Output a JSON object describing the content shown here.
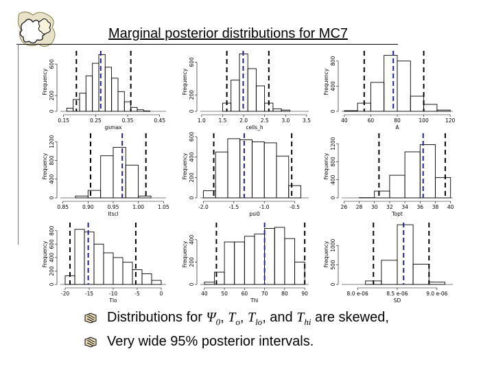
{
  "title": "Marginal posterior distributions for MC7",
  "bullets": {
    "b1": {
      "prefix": "Distributions for ",
      "psi": "Ψ",
      "psi_sub": "0",
      "sep1": ", ",
      "to": "T",
      "to_sub": "o",
      "sep2": ", ",
      "tlo": "T",
      "tlo_sub": "lo",
      "sep3": ", and ",
      "thi": "T",
      "thi_sub": "hi",
      "suffix": " are skewed,"
    },
    "b2": {
      "text": "Very wide 95% posterior intervals."
    }
  },
  "chart_data": [
    {
      "type": "bar",
      "xlabel": "gsmax",
      "ylabel": "Frequency",
      "xlim": [
        0.14,
        0.47
      ],
      "ylim": [
        0,
        750
      ],
      "xticks": [
        0.15,
        0.25,
        0.35,
        0.45
      ],
      "xtick_labels": [
        "0.15",
        "0.25",
        "0.35",
        "0.45"
      ],
      "yticks": [
        0,
        200,
        600
      ],
      "ytick_labels": [
        "0",
        "200",
        "600"
      ],
      "bins": [
        0.16,
        0.18,
        0.2,
        0.22,
        0.24,
        0.26,
        0.28,
        0.3,
        0.32,
        0.34,
        0.36,
        0.38,
        0.4,
        0.42
      ],
      "counts": [
        40,
        150,
        230,
        450,
        610,
        720,
        560,
        420,
        250,
        120,
        50,
        20,
        5
      ],
      "ci95": [
        0.19,
        0.36
      ],
      "mean": 0.266
    },
    {
      "type": "bar",
      "xlabel": "cells_h",
      "ylabel": "Frequency",
      "xlim": [
        0.97,
        3.55
      ],
      "ylim": [
        0,
        720
      ],
      "xticks": [
        1.0,
        1.5,
        2.0,
        2.5,
        3.0,
        3.5
      ],
      "xtick_labels": [
        "1.0",
        "1.5",
        "2.0",
        "2.5",
        "3.0",
        "3.5"
      ],
      "yticks": [
        0,
        200,
        600
      ],
      "ytick_labels": [
        "0",
        "200",
        "600"
      ],
      "bins": [
        1.5,
        1.7,
        1.9,
        2.1,
        2.3,
        2.5,
        2.7,
        2.9,
        3.1
      ],
      "counts": [
        100,
        380,
        700,
        520,
        310,
        100,
        30,
        15
      ],
      "ci95": [
        1.6,
        2.6
      ],
      "mean": 1.99
    },
    {
      "type": "bar",
      "xlabel": "A",
      "ylabel": "Frequency",
      "xlim": [
        38,
        122
      ],
      "ylim": [
        0,
        940
      ],
      "xticks": [
        40,
        60,
        80,
        100,
        120
      ],
      "xtick_labels": [
        "40",
        "60",
        "80",
        "100",
        "120"
      ],
      "yticks": [
        0,
        400,
        800
      ],
      "ytick_labels": [
        "0",
        "400",
        "800"
      ],
      "bins": [
        40,
        50,
        60,
        70,
        80,
        90,
        100,
        110,
        120
      ],
      "counts": [
        10,
        130,
        460,
        890,
        800,
        240,
        110,
        20
      ],
      "ci95": [
        55,
        100
      ],
      "mean": 77
    },
    {
      "type": "bar",
      "xlabel": "ltscl",
      "ylabel": "Frequency",
      "xlim": [
        0.845,
        1.055
      ],
      "ylim": [
        0,
        1350
      ],
      "xticks": [
        0.85,
        0.9,
        0.95,
        1.0,
        1.05
      ],
      "xtick_labels": [
        "0.85",
        "0.90",
        "0.95",
        "1.00",
        "1.05"
      ],
      "yticks": [
        0,
        400,
        800,
        1200
      ],
      "ytick_labels": [
        "0",
        "400",
        "800",
        "1200"
      ],
      "bins": [
        0.875,
        0.9,
        0.925,
        0.95,
        0.975,
        1.0,
        1.025
      ],
      "counts": [
        40,
        160,
        900,
        1080,
        700,
        40
      ],
      "ci95": [
        0.905,
        1.015
      ],
      "mean": 0.968
    },
    {
      "type": "bar",
      "xlabel": "psi0",
      "ylabel": "Frequency",
      "xlim": [
        -2.05,
        -0.27
      ],
      "ylim": [
        0,
        620
      ],
      "xticks": [
        -2.0,
        -1.5,
        -1.0,
        -0.5
      ],
      "xtick_labels": [
        "-2.0",
        "-1.5",
        "-1.0",
        "-0.5"
      ],
      "yticks": [
        0,
        200,
        400,
        600
      ],
      "ytick_labels": [
        "0",
        "200",
        "400",
        "600"
      ],
      "bins": [
        -2.0,
        -1.8,
        -1.6,
        -1.4,
        -1.2,
        -1.0,
        -0.8,
        -0.6,
        -0.4
      ],
      "counts": [
        70,
        450,
        580,
        570,
        550,
        540,
        410,
        120
      ],
      "ci95": [
        -1.83,
        -0.55
      ],
      "mean": -1.33
    },
    {
      "type": "bar",
      "xlabel": "Topt",
      "ylabel": "Frequency",
      "xlim": [
        25.7,
        40.3
      ],
      "ylim": [
        0,
        1400
      ],
      "xticks": [
        26,
        28,
        30,
        32,
        34,
        36,
        38,
        40
      ],
      "xtick_labels": [
        "26",
        "28",
        "30",
        "32",
        "34",
        "36",
        "38",
        "40"
      ],
      "yticks": [
        0,
        400,
        800,
        1200
      ],
      "ytick_labels": [
        "0",
        "400",
        "800",
        "1200"
      ],
      "bins": [
        28,
        30,
        32,
        34,
        36,
        38,
        40
      ],
      "counts": [
        5,
        150,
        500,
        1020,
        1180,
        450
      ],
      "ci95": [
        30.6,
        39.3
      ],
      "mean": 36.4
    },
    {
      "type": "bar",
      "xlabel": "Tlo",
      "ylabel": "Frequency",
      "xlim": [
        -21,
        1
      ],
      "ylim": [
        0,
        900
      ],
      "xticks": [
        -20,
        -15,
        -10,
        -5,
        0
      ],
      "xtick_labels": [
        "-20",
        "-15",
        "-10",
        "-5",
        "0"
      ],
      "yticks": [
        0,
        200,
        400,
        600,
        800
      ],
      "ytick_labels": [
        "0",
        "200",
        "400",
        "600",
        "800"
      ],
      "bins": [
        -20,
        -18,
        -16,
        -14,
        -12,
        -10,
        -8,
        -6,
        -4,
        -2,
        0
      ],
      "counts": [
        130,
        820,
        780,
        600,
        470,
        400,
        330,
        220,
        160,
        60
      ],
      "ci95": [
        -19,
        -5.3
      ],
      "mean": -15.2
    },
    {
      "type": "bar",
      "xlabel": "Thi",
      "ylabel": "Frequency",
      "xlim": [
        38,
        92
      ],
      "ylim": [
        0,
        540
      ],
      "xticks": [
        40,
        50,
        60,
        70,
        80,
        90
      ],
      "xtick_labels": [
        "40",
        "50",
        "60",
        "70",
        "80",
        "90"
      ],
      "yticks": [
        0,
        200,
        400
      ],
      "ytick_labels": [
        "0",
        "200",
        "400"
      ],
      "bins": [
        40,
        45,
        50,
        55,
        60,
        65,
        70,
        75,
        80,
        85,
        90
      ],
      "counts": [
        20,
        110,
        380,
        380,
        430,
        450,
        500,
        510,
        410,
        200
      ],
      "ci95": [
        46,
        90
      ],
      "mean": 70
    },
    {
      "type": "bar",
      "xlabel": "SD",
      "ylabel": "Frequency",
      "xlim": [
        7.8e-06,
        9.2e-06
      ],
      "ylim": [
        0,
        1550
      ],
      "xticks": [
        8e-06,
        8.5e-06,
        9e-06
      ],
      "xtick_labels": [
        "8.0 e-06",
        "8.5 e-06",
        "9.0 e-06"
      ],
      "yticks": [
        0,
        500,
        1000
      ],
      "ytick_labels": [
        "0",
        "500",
        "1000"
      ],
      "bins": [
        8.1e-06,
        8.3e-06,
        8.5e-06,
        8.7e-06,
        8.9e-06,
        9.1e-06
      ],
      "counts": [
        90,
        620,
        1530,
        520,
        60
      ],
      "ci95": [
        8.2e-06,
        8.9e-06
      ],
      "mean": 8.58e-06
    }
  ]
}
